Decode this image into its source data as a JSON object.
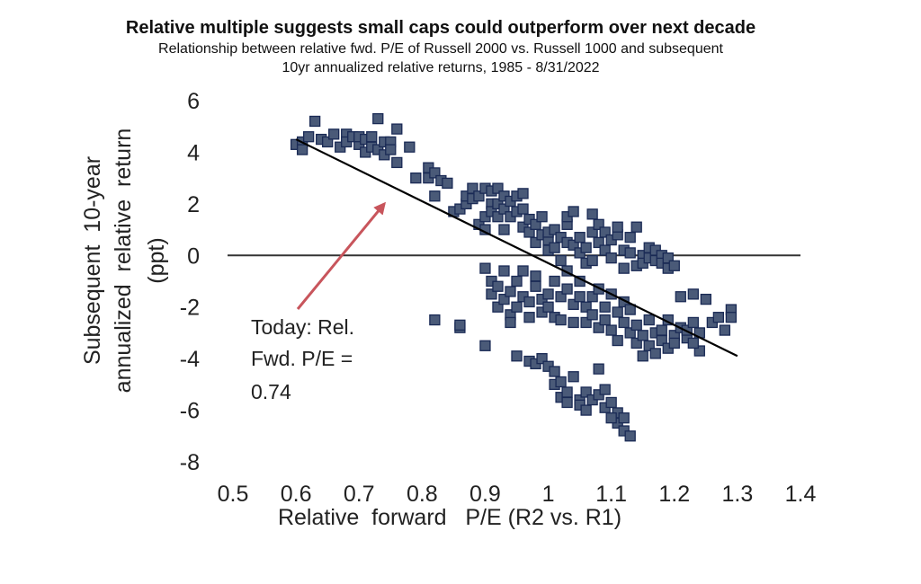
{
  "chart_data": {
    "type": "scatter",
    "title": "Relative multiple suggests small caps could outperform over next decade",
    "subtitle_lines": [
      "Relationship between relative fwd. P/E of Russell 2000 vs. Russell 1000 and subsequent",
      "10yr annualized relative returns, 1985 - 8/31/2022"
    ],
    "xlabel": "Relative  forward   P/E (R2 vs. R1)",
    "ylabel_lines": [
      "Subsequent  10-year",
      "annualized  relative  return",
      "(ppt)"
    ],
    "xlim": [
      0.5,
      1.4
    ],
    "ylim": [
      -8,
      6
    ],
    "xticks": [
      "0.5",
      "0.6",
      "0.7",
      "0.8",
      "0.9",
      "1",
      "1.1",
      "1.2",
      "1.3",
      "1.4"
    ],
    "yticks": [
      "6",
      "4",
      "2",
      "0",
      "-2",
      "-4",
      "-6",
      "-8"
    ],
    "grid": false,
    "legend": "none",
    "zero_line": true,
    "trendline": {
      "x": [
        0.6,
        1.3
      ],
      "y": [
        4.5,
        -3.9
      ]
    },
    "annotation": {
      "lines": [
        "Today: Rel.",
        "Fwd. P/E =",
        "0.74"
      ],
      "arrow_to": {
        "x": 0.74,
        "y": 2.0
      },
      "arrow_color": "#c8555c"
    },
    "marker_color": "#4a5a78",
    "marker_edge_color": "#1a2a55",
    "points": [
      [
        0.6,
        4.3
      ],
      [
        0.61,
        4.4
      ],
      [
        0.61,
        4.1
      ],
      [
        0.62,
        4.6
      ],
      [
        0.63,
        5.2
      ],
      [
        0.64,
        4.5
      ],
      [
        0.65,
        4.4
      ],
      [
        0.66,
        4.7
      ],
      [
        0.67,
        4.2
      ],
      [
        0.68,
        4.7
      ],
      [
        0.68,
        4.4
      ],
      [
        0.69,
        4.6
      ],
      [
        0.7,
        4.3
      ],
      [
        0.7,
        4.6
      ],
      [
        0.71,
        4.0
      ],
      [
        0.71,
        4.5
      ],
      [
        0.72,
        4.2
      ],
      [
        0.72,
        4.6
      ],
      [
        0.73,
        4.1
      ],
      [
        0.73,
        5.3
      ],
      [
        0.74,
        3.9
      ],
      [
        0.74,
        4.4
      ],
      [
        0.75,
        4.4
      ],
      [
        0.75,
        4.1
      ],
      [
        0.76,
        4.9
      ],
      [
        0.76,
        3.6
      ],
      [
        0.78,
        4.2
      ],
      [
        0.79,
        3.0
      ],
      [
        0.81,
        3.4
      ],
      [
        0.81,
        3.0
      ],
      [
        0.82,
        2.3
      ],
      [
        0.82,
        3.2
      ],
      [
        0.83,
        2.9
      ],
      [
        0.84,
        2.8
      ],
      [
        0.85,
        1.7
      ],
      [
        0.86,
        1.8
      ],
      [
        0.87,
        2.0
      ],
      [
        0.87,
        2.3
      ],
      [
        0.88,
        2.6
      ],
      [
        0.88,
        2.2
      ],
      [
        0.89,
        2.3
      ],
      [
        0.89,
        1.2
      ],
      [
        0.9,
        2.6
      ],
      [
        0.9,
        1.5
      ],
      [
        0.9,
        1.0
      ],
      [
        0.91,
        2.5
      ],
      [
        0.91,
        2.0
      ],
      [
        0.91,
        1.7
      ],
      [
        0.92,
        1.5
      ],
      [
        0.92,
        2.0
      ],
      [
        0.92,
        2.6
      ],
      [
        0.93,
        1.0
      ],
      [
        0.93,
        2.3
      ],
      [
        0.93,
        1.8
      ],
      [
        0.94,
        1.5
      ],
      [
        0.94,
        2.1
      ],
      [
        0.95,
        2.3
      ],
      [
        0.95,
        1.7
      ],
      [
        0.96,
        1.1
      ],
      [
        0.96,
        2.4
      ],
      [
        0.96,
        1.8
      ],
      [
        0.97,
        1.4
      ],
      [
        0.97,
        0.9
      ],
      [
        0.98,
        1.2
      ],
      [
        0.98,
        0.5
      ],
      [
        0.99,
        1.5
      ],
      [
        0.99,
        0.8
      ],
      [
        1.0,
        0.6
      ],
      [
        1.0,
        0.2
      ],
      [
        1.0,
        0.9
      ],
      [
        1.01,
        1.0
      ],
      [
        1.01,
        0.3
      ],
      [
        1.02,
        0.7
      ],
      [
        1.02,
        -0.2
      ],
      [
        1.03,
        0.5
      ],
      [
        1.03,
        1.2
      ],
      [
        1.03,
        1.5
      ],
      [
        1.04,
        1.7
      ],
      [
        1.04,
        0.4
      ],
      [
        1.05,
        0.1
      ],
      [
        1.05,
        0.7
      ],
      [
        1.06,
        0.3
      ],
      [
        1.06,
        -0.3
      ],
      [
        1.07,
        1.6
      ],
      [
        1.07,
        0.9
      ],
      [
        1.07,
        -0.2
      ],
      [
        1.08,
        0.5
      ],
      [
        1.08,
        1.2
      ],
      [
        1.09,
        0.2
      ],
      [
        1.09,
        0.9
      ],
      [
        1.1,
        -0.1
      ],
      [
        1.1,
        0.6
      ],
      [
        1.11,
        0.8
      ],
      [
        1.11,
        1.1
      ],
      [
        1.12,
        -0.5
      ],
      [
        1.12,
        0.2
      ],
      [
        1.13,
        0.1
      ],
      [
        1.13,
        0.7
      ],
      [
        1.14,
        -0.4
      ],
      [
        1.14,
        1.1
      ],
      [
        1.15,
        0.0
      ],
      [
        1.15,
        -0.3
      ],
      [
        1.16,
        0.3
      ],
      [
        1.16,
        -0.1
      ],
      [
        1.17,
        -0.2
      ],
      [
        1.17,
        0.2
      ],
      [
        1.18,
        0.0
      ],
      [
        1.18,
        -0.3
      ],
      [
        1.19,
        -0.1
      ],
      [
        1.19,
        -0.5
      ],
      [
        1.2,
        -0.4
      ],
      [
        0.9,
        -0.5
      ],
      [
        0.91,
        -1.0
      ],
      [
        0.91,
        -1.5
      ],
      [
        0.92,
        -2.0
      ],
      [
        0.92,
        -1.2
      ],
      [
        0.93,
        -0.6
      ],
      [
        0.93,
        -1.7
      ],
      [
        0.94,
        -2.3
      ],
      [
        0.94,
        -1.4
      ],
      [
        0.95,
        -1.0
      ],
      [
        0.95,
        -2.0
      ],
      [
        0.96,
        -1.6
      ],
      [
        0.96,
        -0.6
      ],
      [
        0.97,
        -2.4
      ],
      [
        0.97,
        -1.8
      ],
      [
        0.98,
        -1.2
      ],
      [
        0.98,
        -0.8
      ],
      [
        0.99,
        -1.7
      ],
      [
        0.99,
        -2.2
      ],
      [
        1.0,
        -1.5
      ],
      [
        1.0,
        -2.0
      ],
      [
        1.01,
        -2.4
      ],
      [
        1.01,
        -1.0
      ],
      [
        1.02,
        -1.6
      ],
      [
        1.02,
        -2.5
      ],
      [
        1.03,
        -1.3
      ],
      [
        1.03,
        -0.6
      ],
      [
        1.04,
        -1.9
      ],
      [
        1.04,
        -2.6
      ],
      [
        1.05,
        -1.0
      ],
      [
        1.05,
        -1.6
      ],
      [
        1.06,
        -2.0
      ],
      [
        1.06,
        -2.6
      ],
      [
        1.07,
        -1.6
      ],
      [
        1.07,
        -2.3
      ],
      [
        1.08,
        -2.8
      ],
      [
        1.08,
        -1.3
      ],
      [
        1.09,
        -2.0
      ],
      [
        1.09,
        -2.5
      ],
      [
        1.1,
        -1.5
      ],
      [
        1.1,
        -2.9
      ],
      [
        1.11,
        -2.2
      ],
      [
        1.11,
        -3.3
      ],
      [
        1.12,
        -1.8
      ],
      [
        1.12,
        -2.6
      ],
      [
        1.13,
        -3.0
      ],
      [
        1.13,
        -2.1
      ],
      [
        1.14,
        -3.4
      ],
      [
        1.14,
        -2.7
      ],
      [
        1.15,
        -3.9
      ],
      [
        1.15,
        -3.1
      ],
      [
        1.16,
        -2.5
      ],
      [
        1.16,
        -3.5
      ],
      [
        1.17,
        -3.0
      ],
      [
        1.17,
        -3.8
      ],
      [
        1.18,
        -2.9
      ],
      [
        1.18,
        -3.3
      ],
      [
        1.19,
        -2.5
      ],
      [
        1.19,
        -3.6
      ],
      [
        1.2,
        -3.1
      ],
      [
        1.2,
        -3.4
      ],
      [
        1.21,
        -2.8
      ],
      [
        1.21,
        -1.6
      ],
      [
        1.22,
        -3.2
      ],
      [
        1.22,
        -2.9
      ],
      [
        1.23,
        -1.5
      ],
      [
        1.23,
        -2.6
      ],
      [
        1.24,
        -3.0
      ],
      [
        1.25,
        -1.7
      ],
      [
        1.26,
        -2.6
      ],
      [
        1.27,
        -2.4
      ],
      [
        1.28,
        -2.9
      ],
      [
        1.29,
        -2.1
      ],
      [
        1.29,
        -2.4
      ],
      [
        1.24,
        -3.7
      ],
      [
        1.23,
        -3.4
      ],
      [
        0.82,
        -2.5
      ],
      [
        0.86,
        -2.8
      ],
      [
        0.86,
        -2.7
      ],
      [
        0.9,
        -3.5
      ],
      [
        0.94,
        -2.6
      ],
      [
        0.95,
        -3.9
      ],
      [
        0.97,
        -4.1
      ],
      [
        0.98,
        -4.2
      ],
      [
        0.99,
        -4.0
      ],
      [
        1.0,
        -4.3
      ],
      [
        1.01,
        -4.5
      ],
      [
        1.01,
        -5.0
      ],
      [
        1.02,
        -4.9
      ],
      [
        1.02,
        -5.5
      ],
      [
        1.03,
        -5.7
      ],
      [
        1.03,
        -5.3
      ],
      [
        1.04,
        -4.7
      ],
      [
        1.05,
        -5.6
      ],
      [
        1.05,
        -5.8
      ],
      [
        1.06,
        -5.3
      ],
      [
        1.06,
        -6.0
      ],
      [
        1.07,
        -5.6
      ],
      [
        1.08,
        -4.4
      ],
      [
        1.08,
        -5.4
      ],
      [
        1.09,
        -5.9
      ],
      [
        1.1,
        -5.7
      ],
      [
        1.11,
        -6.1
      ],
      [
        1.11,
        -6.5
      ],
      [
        1.12,
        -6.3
      ],
      [
        1.12,
        -6.8
      ],
      [
        1.13,
        -7.0
      ],
      [
        1.09,
        -5.2
      ],
      [
        1.1,
        -6.3
      ]
    ]
  }
}
